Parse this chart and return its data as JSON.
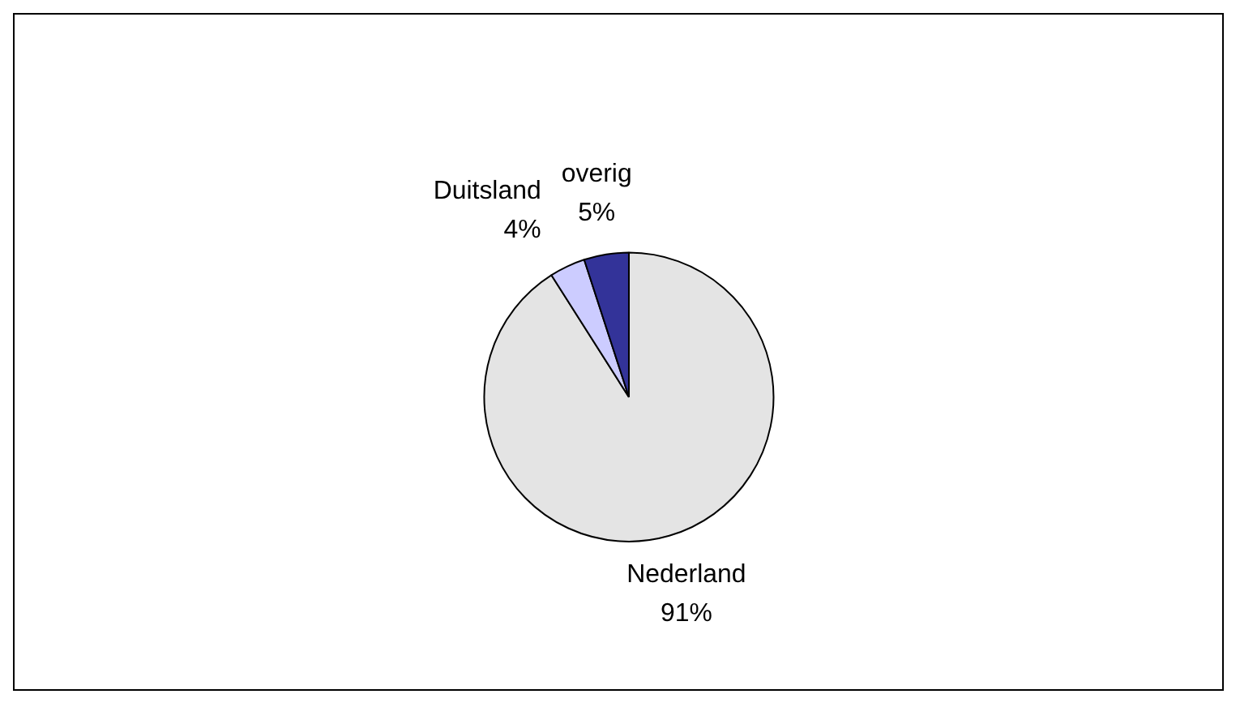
{
  "chart_data": {
    "type": "pie",
    "categories": [
      "Nederland",
      "Duitsland",
      "overig"
    ],
    "values": [
      91,
      4,
      5
    ],
    "value_labels": [
      "91%",
      "4%",
      "5%"
    ],
    "colors": [
      "#e4e4e4",
      "#ccccff",
      "#333399"
    ],
    "legend": false
  }
}
